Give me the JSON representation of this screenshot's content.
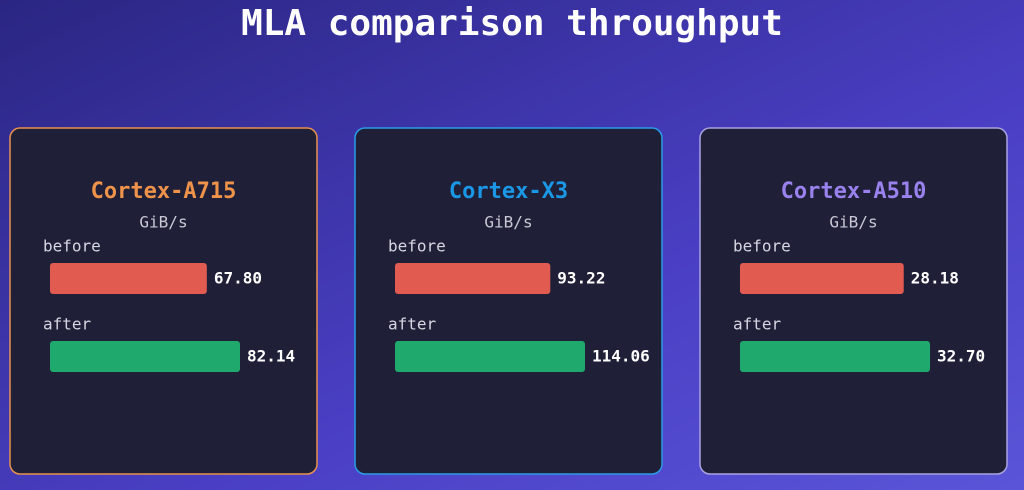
{
  "title": "MLA comparison throughput",
  "chart_data": [
    {
      "type": "hbar",
      "title": "Cortex-A715",
      "title_color": "#f0934a",
      "border_color": "#e8914e",
      "unit": "GiB/s",
      "categories": [
        "before",
        "after"
      ],
      "values": [
        67.8,
        82.14
      ],
      "value_labels": [
        "67.80",
        "82.14"
      ],
      "colors": [
        "#e25b50",
        "#1fa96c"
      ]
    },
    {
      "type": "hbar",
      "title": "Cortex-X3",
      "title_color": "#1a98e6",
      "border_color": "#2a9be6",
      "unit": "GiB/s",
      "categories": [
        "before",
        "after"
      ],
      "values": [
        93.22,
        114.06
      ],
      "value_labels": [
        "93.22",
        "114.06"
      ],
      "colors": [
        "#e25b50",
        "#1fa96c"
      ]
    },
    {
      "type": "hbar",
      "title": "Cortex-A510",
      "title_color": "#9a82ee",
      "border_color": "#a9a2e0",
      "unit": "GiB/s",
      "categories": [
        "before",
        "after"
      ],
      "values": [
        28.18,
        32.7
      ],
      "value_labels": [
        "28.18",
        "32.70"
      ],
      "colors": [
        "#e25b50",
        "#1fa96c"
      ]
    }
  ]
}
